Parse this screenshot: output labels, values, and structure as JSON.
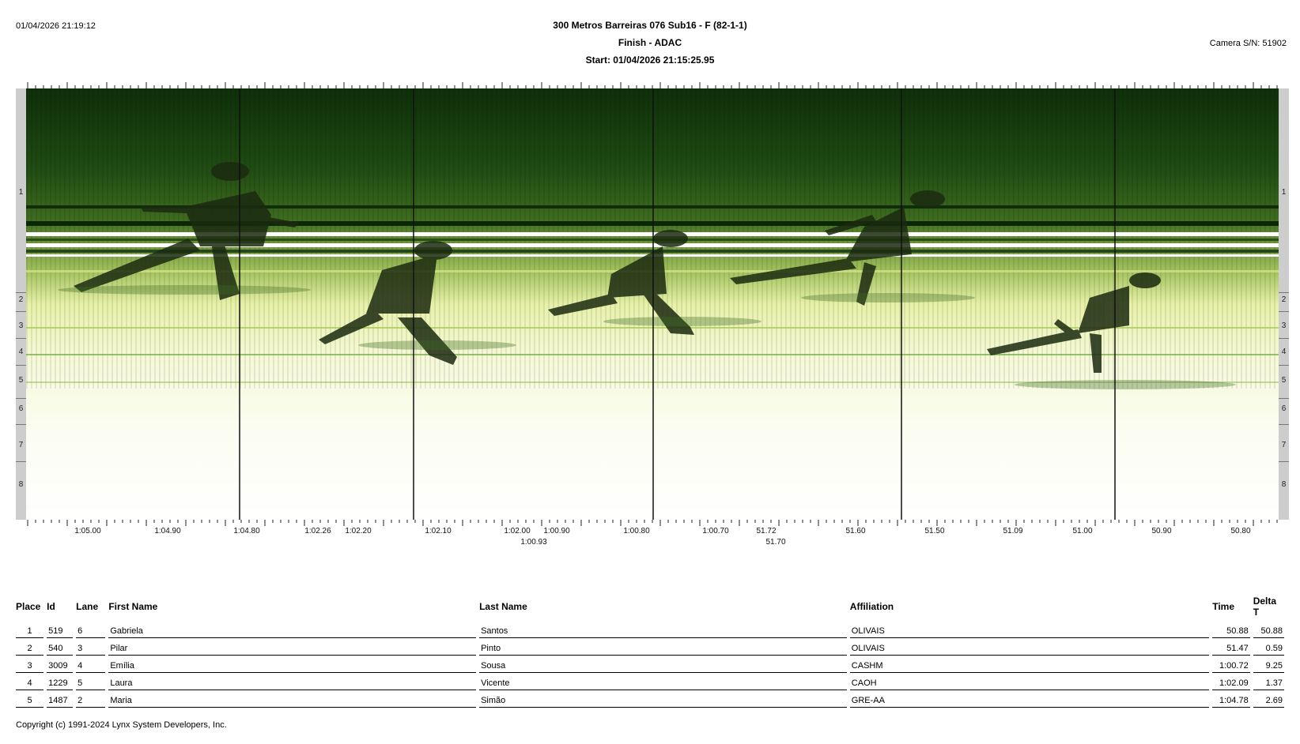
{
  "header": {
    "printed_at": "01/04/2026 21:19:12",
    "title": "300 Metros Barreiras 076 Sub16 - F (82-1-1)",
    "subtitle": "Finish - ADAC",
    "start": "Start: 01/04/2026 21:15:25.95",
    "camera": "Camera S/N: 51902"
  },
  "lanes": [
    "1",
    "2",
    "3",
    "4",
    "5",
    "6",
    "7",
    "8"
  ],
  "time_axis": {
    "labels": [
      "1:05.00",
      "1:04.90",
      "1:04.80",
      "1:02.26",
      "1:02.20",
      "1:02.10",
      "1:02.00",
      "1:00.90",
      "1:00.80",
      "1:00.70",
      "51.72",
      "51.60",
      "51.50",
      "51.09",
      "51.00",
      "50.90",
      "50.80"
    ],
    "second_row": [
      "1:00.93",
      "51.70"
    ]
  },
  "photo": {
    "colors": {
      "dark_green": "#1f4a12",
      "mid_green": "#6f9a3b",
      "light_yellow": "#f3f8c8",
      "cursor": "#111111"
    }
  },
  "table": {
    "headers": {
      "place": "Place",
      "id": "Id",
      "lane": "Lane",
      "first": "First Name",
      "last": "Last Name",
      "affiliation": "Affiliation",
      "time": "Time",
      "delta": "Delta T"
    },
    "rows": [
      {
        "place": "1",
        "id": "519",
        "lane": "6",
        "first": "Gabriela",
        "last": "Santos",
        "affiliation": "OLIVAIS",
        "time": "50.88",
        "delta": "50.88"
      },
      {
        "place": "2",
        "id": "540",
        "lane": "3",
        "first": "Pilar",
        "last": "Pinto",
        "affiliation": "OLIVAIS",
        "time": "51.47",
        "delta": "0.59"
      },
      {
        "place": "3",
        "id": "3009",
        "lane": "4",
        "first": "Emília",
        "last": "Sousa",
        "affiliation": "CASHM",
        "time": "1:00.72",
        "delta": "9.25"
      },
      {
        "place": "4",
        "id": "1229",
        "lane": "5",
        "first": "Laura",
        "last": "Vicente",
        "affiliation": "CAOH",
        "time": "1:02.09",
        "delta": "1.37"
      },
      {
        "place": "5",
        "id": "1487",
        "lane": "2",
        "first": "Maria",
        "last": "Simão",
        "affiliation": "GRE-AA",
        "time": "1:04.78",
        "delta": "2.69"
      }
    ]
  },
  "footer": {
    "copyright": "Copyright (c) 1991-2024 Lynx System Developers, Inc."
  }
}
